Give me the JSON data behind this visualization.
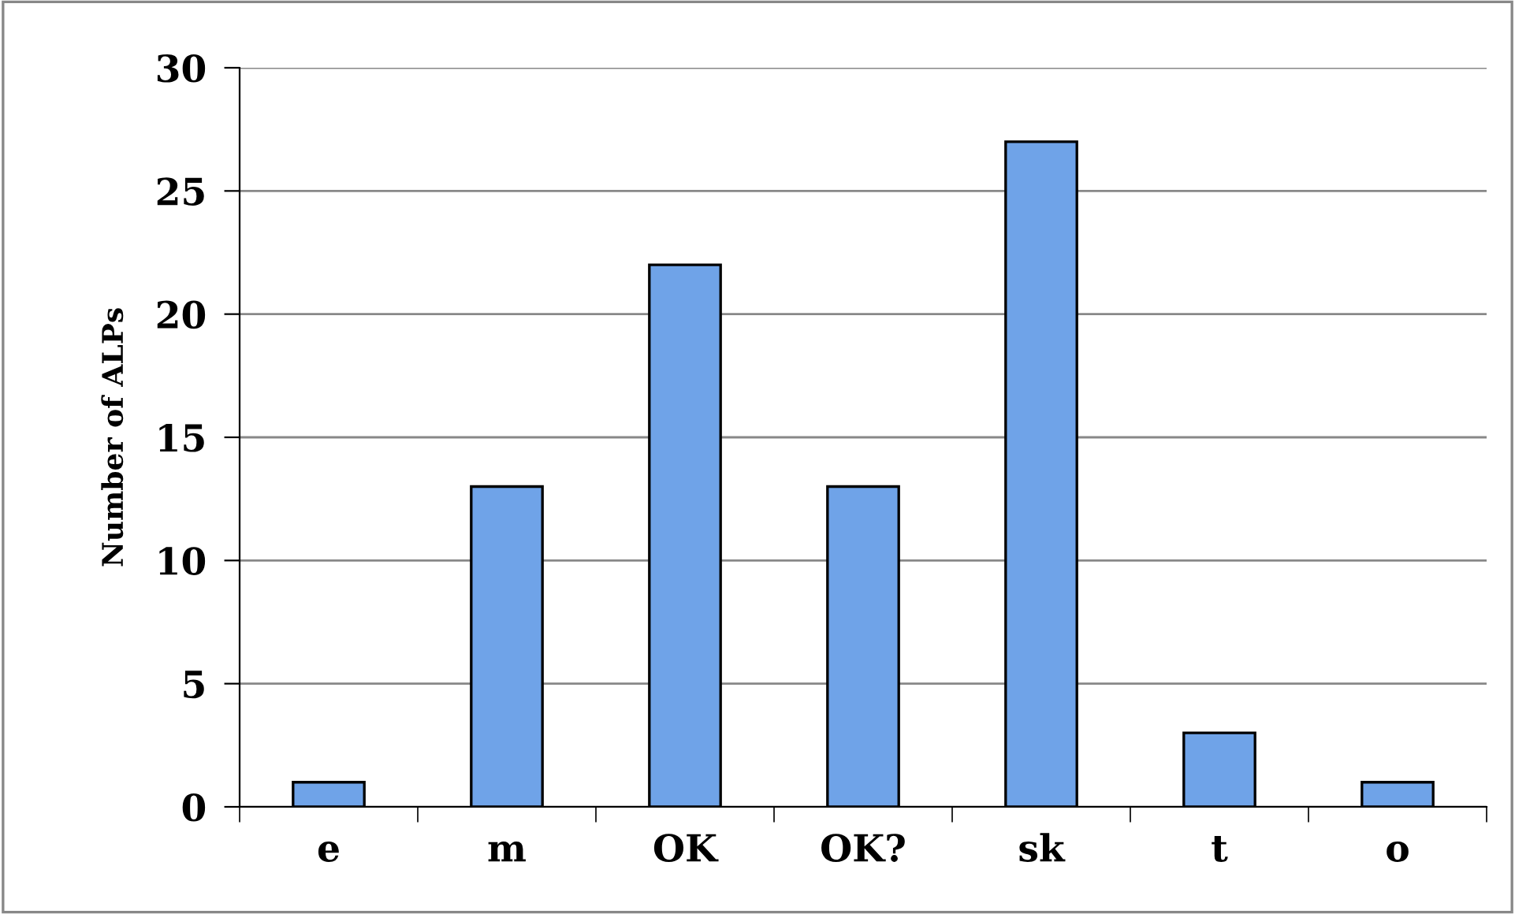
{
  "chart_data": {
    "type": "bar",
    "ylabel": "Number of ALPs",
    "categories": [
      "e",
      "m",
      "OK",
      "OK?",
      "sk",
      "t",
      "o"
    ],
    "values": [
      1,
      13,
      22,
      13,
      27,
      3,
      1
    ],
    "color": "#6fa3e8",
    "ylim": [
      0,
      30
    ],
    "yticks": [
      0,
      5,
      10,
      15,
      20,
      25,
      30
    ],
    "grid": "y"
  }
}
